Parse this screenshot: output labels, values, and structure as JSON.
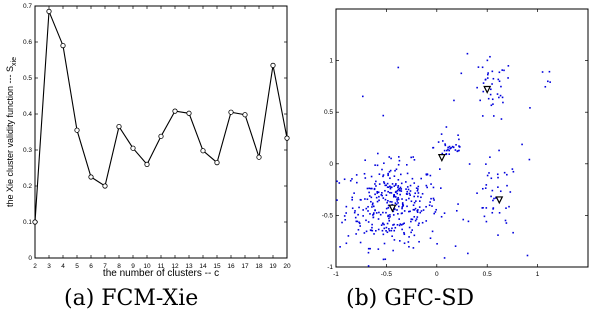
{
  "captions": [
    "(a) FCM-Xie",
    "(b) GFC-SD"
  ],
  "chart_data": [
    {
      "type": "line",
      "title": "",
      "xlabel": "the number of clusters -- c",
      "ylabel": "the Xie cluster validity function --- S",
      "ylabel_subscript": "xie",
      "xlim": [
        2,
        20
      ],
      "ylim": [
        0,
        0.7
      ],
      "xticks": [
        2,
        3,
        4,
        5,
        6,
        7,
        8,
        9,
        10,
        11,
        12,
        13,
        14,
        15,
        16,
        17,
        18,
        19,
        20
      ],
      "yticks": [
        0,
        0.1,
        0.2,
        0.3,
        0.4,
        0.5,
        0.6,
        0.7
      ],
      "grid": false,
      "marker": "circle",
      "line_color": "#000000",
      "series": [
        {
          "x": [
            2,
            3,
            4,
            5,
            6,
            7,
            8,
            9,
            10,
            11,
            12,
            13,
            14,
            15,
            16,
            17,
            18,
            19,
            20
          ],
          "values": [
            0.1,
            0.685,
            0.59,
            0.355,
            0.225,
            0.2,
            0.365,
            0.305,
            0.26,
            0.338,
            0.408,
            0.402,
            0.298,
            0.265,
            0.405,
            0.398,
            0.28,
            0.535,
            0.333
          ]
        }
      ]
    },
    {
      "type": "scatter",
      "title": "",
      "xlabel": "",
      "ylabel": "",
      "xlim": [
        -1,
        1.5
      ],
      "ylim": [
        -1,
        1.5
      ],
      "xticks": [
        -1,
        -0.5,
        0,
        0.5,
        1
      ],
      "yticks": [
        -1,
        -0.5,
        0,
        0.5,
        1
      ],
      "grid": false,
      "point_color": "#0000dd",
      "marker_color": "#000000",
      "clusters": [
        {
          "center": [
            -0.44,
            -0.4
          ],
          "spread": [
            0.23,
            0.2
          ],
          "count": 340
        },
        {
          "center": [
            0.13,
            0.16
          ],
          "spread": [
            0.08,
            0.06
          ],
          "count": 30
        },
        {
          "center": [
            0.55,
            0.7
          ],
          "spread": [
            0.1,
            0.16
          ],
          "count": 38
        },
        {
          "center": [
            0.58,
            -0.36
          ],
          "spread": [
            0.12,
            0.2
          ],
          "count": 42
        }
      ],
      "outlier_count": 30,
      "centers": [
        {
          "x": -0.44,
          "y": -0.43
        },
        {
          "x": 0.05,
          "y": 0.06
        },
        {
          "x": 0.5,
          "y": 0.72
        },
        {
          "x": 0.62,
          "y": -0.35
        }
      ]
    }
  ]
}
